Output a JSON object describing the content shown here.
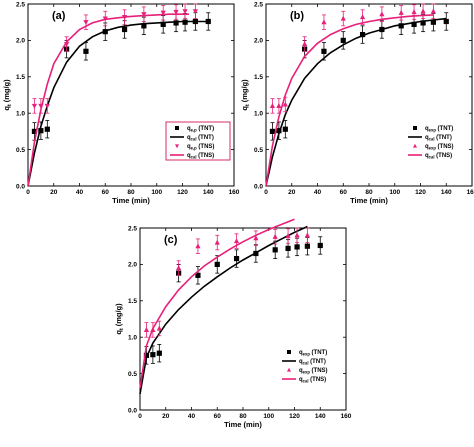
{
  "colors": {
    "tnt": "#000000",
    "tns": "#e8207a",
    "legend_border": "#d8185a"
  },
  "chart_data": [
    {
      "type": "scatter",
      "panel_label": "(a)",
      "xlabel": "Time (min)",
      "ylabel": "q",
      "ylabel_sub": "t",
      "ylabel_unit": "(mg/g)",
      "xlim": [
        0,
        160
      ],
      "ylim": [
        0,
        2.5
      ],
      "xticks": [
        "0",
        "20",
        "40",
        "60",
        "80",
        "100",
        "120",
        "140",
        "160"
      ],
      "yticks": [
        "0.0",
        "0.5",
        "1.0",
        "1.5",
        "2.0",
        "2.5"
      ],
      "legend_position": "bottom-right",
      "legend": [
        {
          "prefix": "q",
          "sub": "e,p",
          "suffix": " (TNT)"
        },
        {
          "prefix": "q",
          "sub": "cal",
          "suffix": " (TNT)"
        },
        {
          "prefix": "q",
          "sub": "e,p",
          "suffix": " (TNS)"
        },
        {
          "prefix": "q",
          "sub": "cal",
          "suffix": " (TNS)"
        }
      ],
      "series": [
        {
          "marker": "square",
          "color": "tnt",
          "points": [
            [
              5,
              0.75
            ],
            [
              10,
              0.76
            ],
            [
              15,
              0.78
            ],
            [
              30,
              1.88
            ],
            [
              45,
              1.85
            ],
            [
              60,
              2.12
            ],
            [
              75,
              2.15
            ],
            [
              90,
              2.2
            ],
            [
              105,
              2.22
            ],
            [
              115,
              2.24
            ],
            [
              122,
              2.25
            ],
            [
              130,
              2.26
            ],
            [
              140,
              2.26
            ]
          ],
          "err": 0.12
        },
        {
          "marker": "line",
          "color": "tnt",
          "line": [
            [
              0,
              0
            ],
            [
              5,
              0.45
            ],
            [
              10,
              0.82
            ],
            [
              15,
              1.1
            ],
            [
              20,
              1.35
            ],
            [
              30,
              1.7
            ],
            [
              40,
              1.92
            ],
            [
              50,
              2.05
            ],
            [
              60,
              2.13
            ],
            [
              70,
              2.18
            ],
            [
              80,
              2.21
            ],
            [
              90,
              2.23
            ],
            [
              100,
              2.24
            ],
            [
              110,
              2.25
            ],
            [
              120,
              2.26
            ],
            [
              140,
              2.26
            ]
          ]
        },
        {
          "marker": "triangle-down",
          "color": "tns",
          "points": [
            [
              5,
              1.1
            ],
            [
              10,
              1.1
            ],
            [
              15,
              1.1
            ],
            [
              30,
              1.95
            ],
            [
              45,
              2.25
            ],
            [
              60,
              2.3
            ],
            [
              75,
              2.32
            ],
            [
              90,
              2.36
            ],
            [
              105,
              2.38
            ],
            [
              115,
              2.39
            ],
            [
              122,
              2.4
            ],
            [
              130,
              2.4
            ]
          ],
          "err": 0.1
        },
        {
          "marker": "line",
          "color": "tns",
          "line": [
            [
              0,
              0
            ],
            [
              5,
              0.6
            ],
            [
              10,
              1.05
            ],
            [
              15,
              1.4
            ],
            [
              20,
              1.68
            ],
            [
              30,
              1.98
            ],
            [
              40,
              2.15
            ],
            [
              50,
              2.24
            ],
            [
              60,
              2.29
            ],
            [
              70,
              2.31
            ],
            [
              80,
              2.33
            ],
            [
              90,
              2.34
            ],
            [
              100,
              2.35
            ],
            [
              110,
              2.36
            ],
            [
              120,
              2.36
            ],
            [
              125,
              2.36
            ]
          ]
        }
      ]
    },
    {
      "type": "scatter",
      "panel_label": "(b)",
      "xlabel": "Time (min)",
      "ylabel": "q",
      "ylabel_sub": "t",
      "ylabel_unit": "(mg/g)",
      "xlim": [
        0,
        160
      ],
      "ylim": [
        0,
        2.5
      ],
      "xticks": [
        "0",
        "20",
        "40",
        "60",
        "80",
        "100",
        "120",
        "140",
        "160"
      ],
      "yticks": [
        "0.0",
        "0.5",
        "1.0",
        "1.5",
        "2.0",
        "2.5"
      ],
      "legend_position": "bottom-right",
      "legend": [
        {
          "prefix": "q",
          "sub": "exp",
          "suffix": " (TNT)"
        },
        {
          "prefix": "q",
          "sub": "cal",
          "suffix": " (TNT)"
        },
        {
          "prefix": "q",
          "sub": "exp",
          "suffix": " (TNS)"
        },
        {
          "prefix": "q",
          "sub": "cal",
          "suffix": " (TNS)"
        }
      ],
      "series": [
        {
          "marker": "square",
          "color": "tnt",
          "points": [
            [
              5,
              0.75
            ],
            [
              10,
              0.76
            ],
            [
              15,
              0.78
            ],
            [
              30,
              1.88
            ],
            [
              45,
              1.85
            ],
            [
              60,
              2.0
            ],
            [
              75,
              2.08
            ],
            [
              90,
              2.15
            ],
            [
              105,
              2.2
            ],
            [
              115,
              2.22
            ],
            [
              122,
              2.24
            ],
            [
              130,
              2.25
            ],
            [
              140,
              2.26
            ]
          ],
          "err": 0.12
        },
        {
          "marker": "line",
          "color": "tnt",
          "line": [
            [
              0,
              0
            ],
            [
              5,
              0.4
            ],
            [
              10,
              0.72
            ],
            [
              15,
              0.98
            ],
            [
              20,
              1.18
            ],
            [
              30,
              1.48
            ],
            [
              40,
              1.68
            ],
            [
              50,
              1.83
            ],
            [
              60,
              1.94
            ],
            [
              70,
              2.03
            ],
            [
              80,
              2.1
            ],
            [
              90,
              2.15
            ],
            [
              100,
              2.2
            ],
            [
              110,
              2.23
            ],
            [
              120,
              2.26
            ],
            [
              130,
              2.28
            ],
            [
              140,
              2.3
            ]
          ]
        },
        {
          "marker": "triangle-up",
          "color": "tns",
          "points": [
            [
              5,
              1.1
            ],
            [
              10,
              1.1
            ],
            [
              15,
              1.12
            ],
            [
              30,
              1.95
            ],
            [
              45,
              2.25
            ],
            [
              60,
              2.3
            ],
            [
              75,
              2.32
            ],
            [
              90,
              2.36
            ],
            [
              105,
              2.38
            ],
            [
              115,
              2.39
            ],
            [
              122,
              2.4
            ],
            [
              130,
              2.4
            ]
          ],
          "err": 0.1
        },
        {
          "marker": "line",
          "color": "tns",
          "line": [
            [
              0,
              0
            ],
            [
              5,
              0.55
            ],
            [
              10,
              0.95
            ],
            [
              15,
              1.25
            ],
            [
              20,
              1.48
            ],
            [
              30,
              1.78
            ],
            [
              40,
              1.96
            ],
            [
              50,
              2.08
            ],
            [
              60,
              2.16
            ],
            [
              70,
              2.22
            ],
            [
              80,
              2.26
            ],
            [
              90,
              2.29
            ],
            [
              100,
              2.31
            ],
            [
              110,
              2.33
            ],
            [
              120,
              2.34
            ],
            [
              130,
              2.35
            ]
          ]
        }
      ]
    },
    {
      "type": "scatter",
      "panel_label": "(c)",
      "xlabel": "Time (min)",
      "ylabel": "q",
      "ylabel_sub": "t",
      "ylabel_unit": "(mg/g)",
      "xlim": [
        0,
        160
      ],
      "ylim": [
        0,
        2.5
      ],
      "xticks": [
        "0",
        "20",
        "40",
        "60",
        "80",
        "100",
        "120",
        "140",
        "160"
      ],
      "yticks": [
        "0.0",
        "0.5",
        "1.0",
        "1.5",
        "2.0",
        "2.5"
      ],
      "legend_position": "bottom-right",
      "legend": [
        {
          "prefix": "q",
          "sub": "exp",
          "suffix": " (TNT)"
        },
        {
          "prefix": "q",
          "sub": "cal",
          "suffix": " (TNT)"
        },
        {
          "prefix": "q",
          "sub": "exp",
          "suffix": " (TNS)"
        },
        {
          "prefix": "q",
          "sub": "cal",
          "suffix": " (TNS)"
        }
      ],
      "series": [
        {
          "marker": "square",
          "color": "tnt",
          "points": [
            [
              5,
              0.75
            ],
            [
              10,
              0.76
            ],
            [
              15,
              0.78
            ],
            [
              30,
              1.88
            ],
            [
              45,
              1.85
            ],
            [
              60,
              2.0
            ],
            [
              75,
              2.08
            ],
            [
              90,
              2.15
            ],
            [
              105,
              2.2
            ],
            [
              115,
              2.22
            ],
            [
              122,
              2.24
            ],
            [
              130,
              2.25
            ],
            [
              140,
              2.26
            ]
          ],
          "err": 0.12
        },
        {
          "marker": "line",
          "color": "tnt",
          "line": [
            [
              0,
              0.22
            ],
            [
              5,
              0.72
            ],
            [
              10,
              0.92
            ],
            [
              20,
              1.18
            ],
            [
              30,
              1.38
            ],
            [
              40,
              1.55
            ],
            [
              50,
              1.7
            ],
            [
              60,
              1.83
            ],
            [
              70,
              1.95
            ],
            [
              80,
              2.06
            ],
            [
              90,
              2.16
            ],
            [
              100,
              2.26
            ],
            [
              110,
              2.35
            ],
            [
              120,
              2.44
            ],
            [
              130,
              2.52
            ]
          ]
        },
        {
          "marker": "triangle-up",
          "color": "tns",
          "points": [
            [
              5,
              1.1
            ],
            [
              10,
              1.1
            ],
            [
              15,
              1.12
            ],
            [
              30,
              1.95
            ],
            [
              45,
              2.25
            ],
            [
              60,
              2.3
            ],
            [
              75,
              2.32
            ],
            [
              90,
              2.36
            ],
            [
              105,
              2.38
            ],
            [
              115,
              2.39
            ],
            [
              122,
              2.4
            ],
            [
              130,
              2.4
            ]
          ],
          "err": 0.1
        },
        {
          "marker": "line",
          "color": "tns",
          "line": [
            [
              0,
              0.3
            ],
            [
              5,
              0.88
            ],
            [
              10,
              1.12
            ],
            [
              20,
              1.42
            ],
            [
              30,
              1.65
            ],
            [
              40,
              1.83
            ],
            [
              50,
              1.98
            ],
            [
              60,
              2.1
            ],
            [
              70,
              2.21
            ],
            [
              80,
              2.31
            ],
            [
              90,
              2.4
            ],
            [
              100,
              2.48
            ],
            [
              110,
              2.55
            ],
            [
              120,
              2.62
            ]
          ]
        }
      ]
    }
  ]
}
